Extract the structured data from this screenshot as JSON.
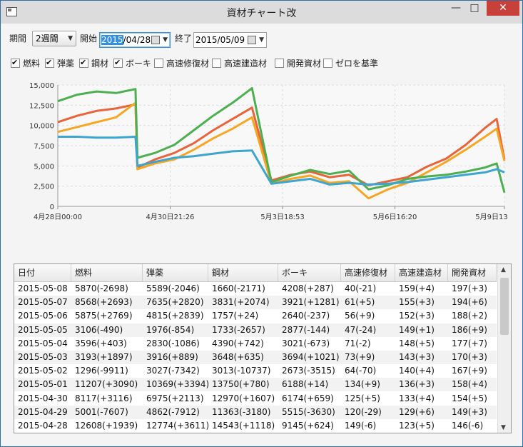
{
  "window": {
    "title": "資材チャート改"
  },
  "controls": {
    "period_label": "期間",
    "period_value": "2週間",
    "start_label": "開始",
    "start_date_sel": "2015",
    "start_date_rest": "/04/28",
    "end_label": "終了",
    "end_date": "2015/05/09"
  },
  "checkboxes": [
    {
      "label": "燃料",
      "checked": true
    },
    {
      "label": "弾薬",
      "checked": true
    },
    {
      "label": "鋼材",
      "checked": true
    },
    {
      "label": "ボーキ",
      "checked": true
    },
    {
      "label": "高速修復材",
      "checked": false
    },
    {
      "label": "高速建造材",
      "checked": false
    },
    {
      "label": "開発資材",
      "checked": false
    },
    {
      "label": "ゼロを基準",
      "checked": false
    }
  ],
  "chart_data": {
    "type": "line",
    "title": "",
    "xlabel": "",
    "ylabel": "",
    "ylim": [
      0,
      15000
    ],
    "yticks": [
      "0",
      "2,500",
      "5,000",
      "7,500",
      "10,000",
      "12,500",
      "15,000"
    ],
    "xticks": [
      "4月28日00:00",
      "4月30日21:26",
      "5月3日18:53",
      "5月6日16:20",
      "5月9日13"
    ],
    "grid": true,
    "legend_position": "bottom",
    "x_days": [
      0,
      0.5,
      1,
      1.5,
      2,
      2.05,
      2.5,
      3,
      3.5,
      4,
      4.5,
      5,
      5.5,
      6,
      6.5,
      7,
      7.5,
      8,
      8.5,
      9,
      9.5,
      10,
      10.5,
      11,
      11.3,
      11.5
    ],
    "series": [
      {
        "name": "燃料",
        "color": "#e8643a",
        "values": [
          10400,
          11200,
          11800,
          12100,
          12600,
          4800,
          5800,
          6600,
          7800,
          9400,
          10800,
          12200,
          3200,
          3900,
          4300,
          3600,
          3900,
          2600,
          3100,
          3600,
          4900,
          5900,
          7600,
          9700,
          10800,
          5800
        ]
      },
      {
        "name": "弾薬",
        "color": "#f5a623",
        "values": [
          9200,
          9800,
          10400,
          11000,
          12800,
          4600,
          5300,
          5800,
          7000,
          8400,
          9600,
          11000,
          2800,
          3400,
          3800,
          2900,
          3100,
          1000,
          2100,
          2900,
          4200,
          5500,
          7000,
          8600,
          9600,
          5600
        ]
      },
      {
        "name": "鋼材",
        "color": "#4caf50",
        "values": [
          13000,
          13800,
          14200,
          14000,
          14500,
          6000,
          6600,
          7600,
          9400,
          11200,
          12800,
          14600,
          3000,
          3800,
          4500,
          4000,
          4400,
          2100,
          2600,
          3400,
          3700,
          3900,
          4300,
          4800,
          5300,
          1700
        ]
      },
      {
        "name": "ボーキ",
        "color": "#3ea4d0",
        "values": [
          8600,
          8600,
          8500,
          8500,
          8600,
          5000,
          5500,
          6000,
          6200,
          6500,
          6800,
          6900,
          2800,
          3100,
          3400,
          2700,
          2900,
          2700,
          2800,
          3000,
          3300,
          3600,
          3900,
          4200,
          4600,
          4200
        ]
      }
    ]
  },
  "table": {
    "columns": [
      "日付",
      "燃料",
      "弾薬",
      "鋼材",
      "ボーキ",
      "高速修復材",
      "高速建造材",
      "開発資材"
    ],
    "rows": [
      [
        "2015-05-08",
        "5870(-2698)",
        "5589(-2046)",
        "1660(-2171)",
        "4208(+287)",
        "40(-21)",
        "159(+4)",
        "197(+3)"
      ],
      [
        "2015-05-07",
        "8568(+2693)",
        "7635(+2820)",
        "3831(+2074)",
        "3921(+1281)",
        "61(+5)",
        "155(+3)",
        "194(+6)"
      ],
      [
        "2015-05-06",
        "5875(+2769)",
        "4815(+2839)",
        "1757(+24)",
        "2640(-237)",
        "56(+9)",
        "152(+3)",
        "188(+2)"
      ],
      [
        "2015-05-05",
        "3106(-490)",
        "1976(-854)",
        "1733(-2657)",
        "2877(-144)",
        "47(-24)",
        "149(+1)",
        "186(+9)"
      ],
      [
        "2015-05-04",
        "3596(+403)",
        "2830(-1086)",
        "4390(+742)",
        "3021(-673)",
        "71(-2)",
        "148(+5)",
        "177(+7)"
      ],
      [
        "2015-05-03",
        "3193(+1897)",
        "3916(+889)",
        "3648(+635)",
        "3694(+1021)",
        "73(+9)",
        "143(+3)",
        "170(+3)"
      ],
      [
        "2015-05-02",
        "1296(-9911)",
        "3027(-7342)",
        "3013(-10737)",
        "2673(-3515)",
        "64(-70)",
        "140(+4)",
        "167(+9)"
      ],
      [
        "2015-05-01",
        "11207(+3090)",
        "10369(+3394)",
        "13750(+780)",
        "6188(+14)",
        "134(+9)",
        "136(+3)",
        "158(+4)"
      ],
      [
        "2015-04-30",
        "8117(+3116)",
        "6975(+2113)",
        "12970(+1607)",
        "6174(+659)",
        "125(+5)",
        "133(+4)",
        "154(+5)"
      ],
      [
        "2015-04-29",
        "5001(-7607)",
        "4862(-7912)",
        "11363(-3180)",
        "5515(-3630)",
        "120(-29)",
        "129(+6)",
        "149(+3)"
      ],
      [
        "2015-04-28",
        "12608(+1939)",
        "12774(+3611)",
        "14543(+1118)",
        "9145(+624)",
        "149(-6)",
        "123(+5)",
        "146(-6)"
      ]
    ]
  }
}
